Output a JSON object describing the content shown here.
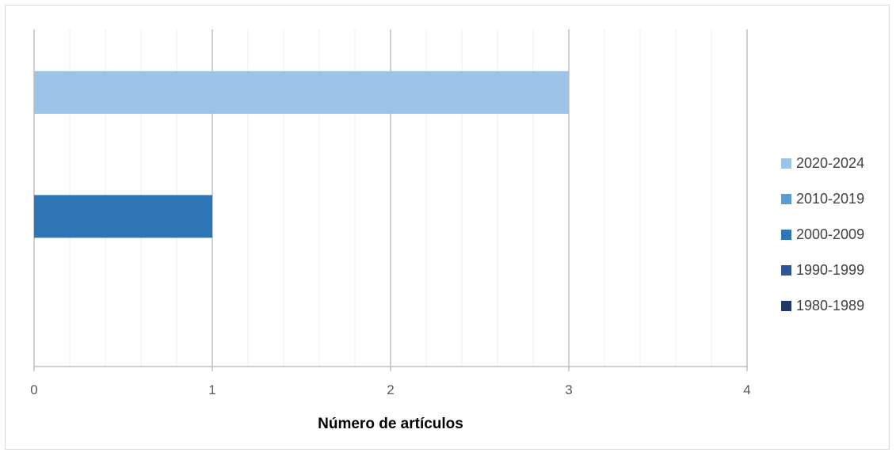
{
  "chart_data": {
    "type": "bar",
    "orientation": "horizontal",
    "title": "",
    "xlabel": "Número de artículos",
    "ylabel": "",
    "xlim": [
      0,
      4
    ],
    "x_ticks": [
      0,
      1,
      2,
      3,
      4
    ],
    "minor_ticks_per_major": 5,
    "grid": true,
    "legend_position": "right",
    "categories": [
      ""
    ],
    "series": [
      {
        "name": "2020-2024",
        "color": "#9dc3e6",
        "values": [
          3
        ]
      },
      {
        "name": "2010-2019",
        "color": "#5b9bd5",
        "values": [
          0
        ]
      },
      {
        "name": "2000-2009",
        "color": "#2e75b6",
        "values": [
          1
        ]
      },
      {
        "name": "1990-1999",
        "color": "#2f5597",
        "values": [
          0
        ]
      },
      {
        "name": "1980-1989",
        "color": "#1f3864",
        "values": [
          0
        ]
      }
    ]
  }
}
